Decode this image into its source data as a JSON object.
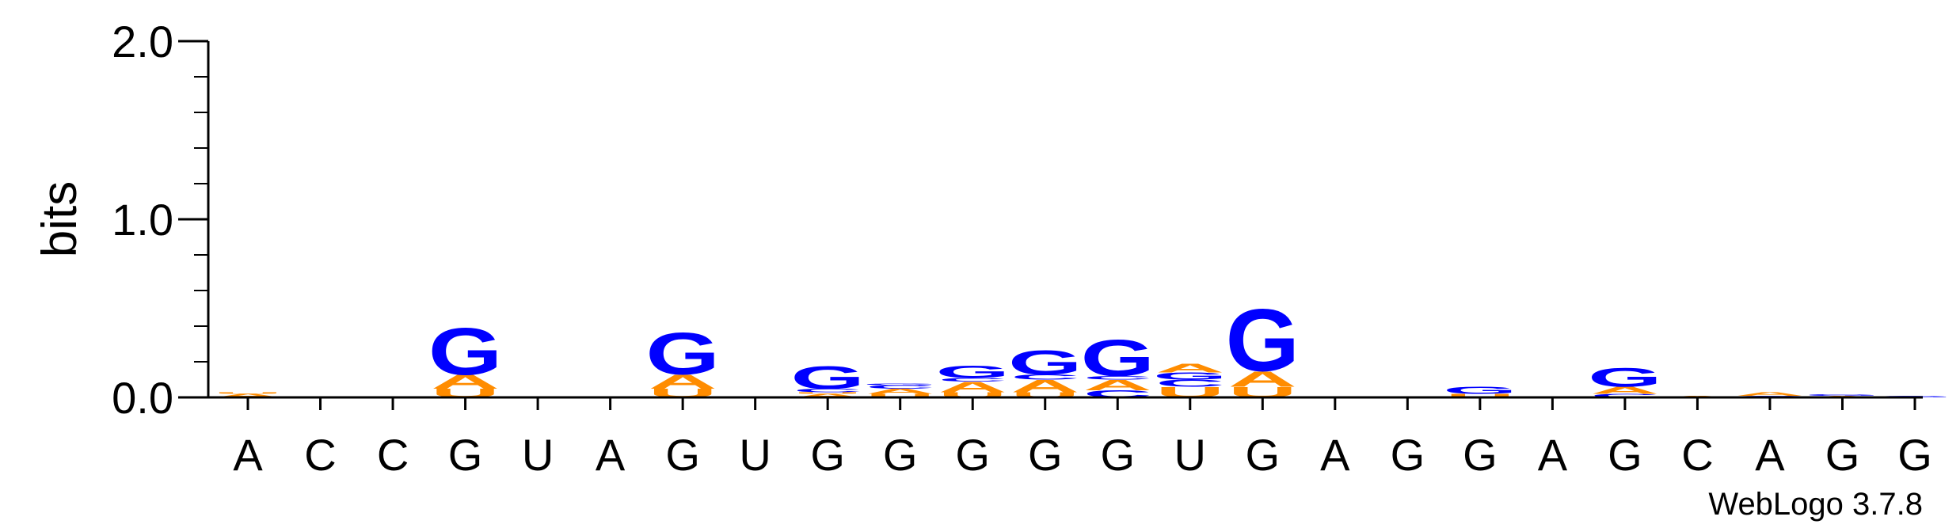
{
  "credit": "WebLogo 3.7.8",
  "colors": {
    "G": "#0000ff",
    "A": "#ff8c00",
    "U": "#ff8c00",
    "C": "#0000ff",
    "axis": "#000000"
  },
  "chart_data": {
    "type": "sequence-logo",
    "title": "",
    "xlabel": "",
    "ylabel": "bits",
    "ylim": [
      0,
      2.0
    ],
    "yticks": [
      "0.0",
      "1.0",
      "2.0"
    ],
    "grid": false,
    "legend": "none",
    "categories": [
      "A",
      "C",
      "C",
      "G",
      "U",
      "A",
      "G",
      "U",
      "G",
      "G",
      "G",
      "G",
      "G",
      "U",
      "G",
      "A",
      "G",
      "G",
      "A",
      "G",
      "C",
      "A",
      "G",
      "G"
    ],
    "stacks": [
      [
        {
          "letter": "A",
          "bits": 0.02
        },
        {
          "letter": "U",
          "bits": 0.01
        }
      ],
      [],
      [],
      [
        {
          "letter": "U",
          "bits": 0.05
        },
        {
          "letter": "A",
          "bits": 0.08
        },
        {
          "letter": "G",
          "bits": 0.27
        }
      ],
      [],
      [],
      [
        {
          "letter": "U",
          "bits": 0.05
        },
        {
          "letter": "A",
          "bits": 0.08
        },
        {
          "letter": "G",
          "bits": 0.24
        }
      ],
      [],
      [
        {
          "letter": "A",
          "bits": 0.02
        },
        {
          "letter": "U",
          "bits": 0.01
        },
        {
          "letter": "C",
          "bits": 0.02
        },
        {
          "letter": "G",
          "bits": 0.13
        }
      ],
      [
        {
          "letter": "U",
          "bits": 0.02
        },
        {
          "letter": "A",
          "bits": 0.03
        },
        {
          "letter": "C",
          "bits": 0.02
        },
        {
          "letter": "G",
          "bits": 0.01
        }
      ],
      [
        {
          "letter": "U",
          "bits": 0.03
        },
        {
          "letter": "A",
          "bits": 0.06
        },
        {
          "letter": "C",
          "bits": 0.02
        },
        {
          "letter": "G",
          "bits": 0.07
        }
      ],
      [
        {
          "letter": "U",
          "bits": 0.03
        },
        {
          "letter": "A",
          "bits": 0.07
        },
        {
          "letter": "C",
          "bits": 0.03
        },
        {
          "letter": "G",
          "bits": 0.14
        }
      ],
      [
        {
          "letter": "C",
          "bits": 0.04
        },
        {
          "letter": "A",
          "bits": 0.06
        },
        {
          "letter": "C",
          "bits": 0.02
        },
        {
          "letter": "G",
          "bits": 0.21
        }
      ],
      [
        {
          "letter": "U",
          "bits": 0.06
        },
        {
          "letter": "C",
          "bits": 0.04
        },
        {
          "letter": "G",
          "bits": 0.04
        },
        {
          "letter": "A",
          "bits": 0.05
        }
      ],
      [
        {
          "letter": "U",
          "bits": 0.06
        },
        {
          "letter": "A",
          "bits": 0.09
        },
        {
          "letter": "G",
          "bits": 0.36
        }
      ],
      [],
      [],
      [
        {
          "letter": "U",
          "bits": 0.02
        },
        {
          "letter": "G",
          "bits": 0.04
        }
      ],
      [],
      [
        {
          "letter": "C",
          "bits": 0.02
        },
        {
          "letter": "A",
          "bits": 0.04
        },
        {
          "letter": "G",
          "bits": 0.11
        }
      ],
      [
        {
          "letter": "A",
          "bits": 0.01
        }
      ],
      [
        {
          "letter": "C",
          "bits": 0.01
        },
        {
          "letter": "A",
          "bits": 0.02
        }
      ],
      [
        {
          "letter": "A",
          "bits": 0.01
        },
        {
          "letter": "G",
          "bits": 0.01
        }
      ],
      [
        {
          "letter": "G",
          "bits": 0.01
        }
      ]
    ]
  }
}
